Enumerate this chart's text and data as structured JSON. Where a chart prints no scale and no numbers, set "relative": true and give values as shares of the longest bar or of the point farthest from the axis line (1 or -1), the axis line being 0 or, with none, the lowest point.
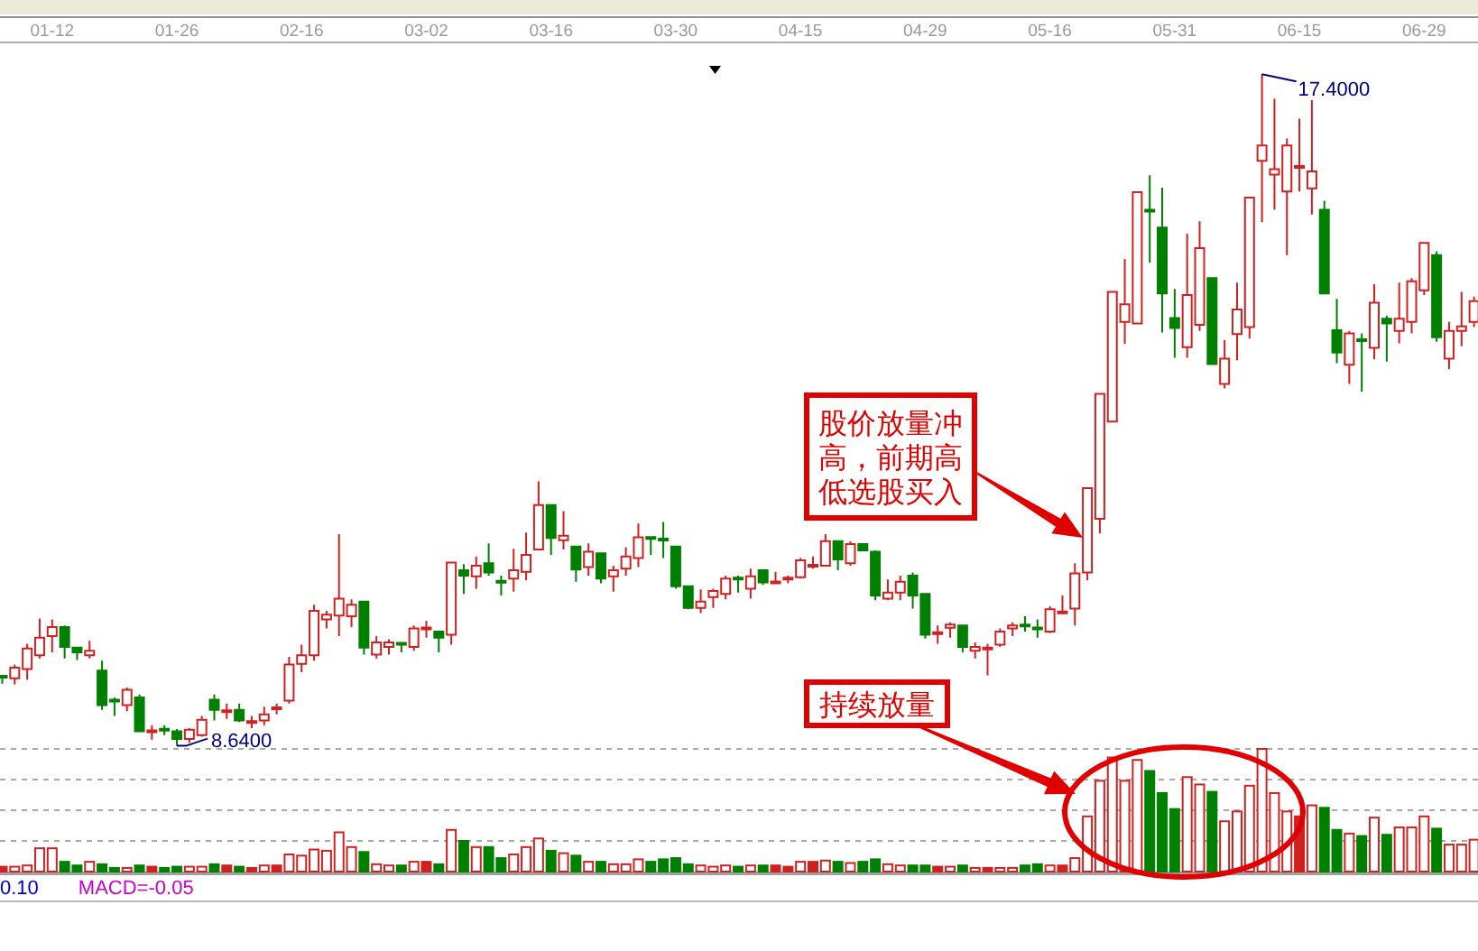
{
  "chart_data": [
    {
      "type": "candlestick",
      "tick_labels": "x",
      "categories": [
        null,
        null,
        null,
        null,
        "01-12",
        null,
        null,
        null,
        null,
        null,
        null,
        null,
        null,
        null,
        "01-26",
        null,
        null,
        null,
        null,
        null,
        null,
        null,
        null,
        null,
        "02-16",
        null,
        null,
        null,
        null,
        null,
        null,
        null,
        null,
        null,
        "03-02",
        null,
        null,
        null,
        null,
        null,
        null,
        null,
        null,
        null,
        "03-16",
        null,
        null,
        null,
        null,
        null,
        null,
        null,
        null,
        null,
        "03-30",
        null,
        null,
        null,
        null,
        null,
        null,
        null,
        null,
        null,
        "04-15",
        null,
        null,
        null,
        null,
        null,
        null,
        null,
        null,
        null,
        "04-29",
        null,
        null,
        null,
        null,
        null,
        null,
        null,
        null,
        null,
        "05-16",
        null,
        null,
        null,
        null,
        null,
        null,
        null,
        null,
        null,
        "05-31",
        null,
        null,
        null,
        null,
        null,
        null,
        null,
        null,
        null,
        "06-15",
        null,
        null,
        null,
        null,
        null,
        null,
        null,
        null,
        null,
        "06-29",
        null,
        null,
        null,
        null
      ],
      "ohlc": [
        [
          9.54,
          9.56,
          9.45,
          9.54
        ],
        [
          9.52,
          9.7,
          9.44,
          9.66
        ],
        [
          9.64,
          9.97,
          9.5,
          9.91
        ],
        [
          9.82,
          10.3,
          9.78,
          10.05
        ],
        [
          10.07,
          10.29,
          9.86,
          10.19
        ],
        [
          10.19,
          10.21,
          9.78,
          9.93
        ],
        [
          9.92,
          9.92,
          9.76,
          9.86
        ],
        [
          9.82,
          10.01,
          9.78,
          9.88
        ],
        [
          9.62,
          9.75,
          9.11,
          9.17
        ],
        [
          9.23,
          9.27,
          9.03,
          9.23
        ],
        [
          9.17,
          9.4,
          9.09,
          9.37
        ],
        [
          9.27,
          9.31,
          8.83,
          8.83
        ],
        [
          8.83,
          8.91,
          8.72,
          8.83
        ],
        [
          8.85,
          8.91,
          8.78,
          8.85
        ],
        [
          8.83,
          8.86,
          8.64,
          8.73
        ],
        [
          8.73,
          8.87,
          8.68,
          8.85
        ],
        [
          8.78,
          9.03,
          8.76,
          8.98
        ],
        [
          9.24,
          9.31,
          8.97,
          9.11
        ],
        [
          9.09,
          9.19,
          8.99,
          9.09
        ],
        [
          9.11,
          9.19,
          8.95,
          8.97
        ],
        [
          8.95,
          9.03,
          8.87,
          8.95
        ],
        [
          8.97,
          9.15,
          8.91,
          9.05
        ],
        [
          9.13,
          9.19,
          9.05,
          9.13
        ],
        [
          9.23,
          9.8,
          9.19,
          9.7
        ],
        [
          9.71,
          9.96,
          9.6,
          9.82
        ],
        [
          9.82,
          10.48,
          9.75,
          10.4
        ],
        [
          10.29,
          10.4,
          10.17,
          10.35
        ],
        [
          10.34,
          11.4,
          10.07,
          10.56
        ],
        [
          10.33,
          10.55,
          10.19,
          10.48
        ],
        [
          10.52,
          10.52,
          9.83,
          9.92
        ],
        [
          9.83,
          10.07,
          9.78,
          9.99
        ],
        [
          9.93,
          10.03,
          9.83,
          9.99
        ],
        [
          9.97,
          9.98,
          9.86,
          9.97
        ],
        [
          9.93,
          10.21,
          9.88,
          10.17
        ],
        [
          10.17,
          10.27,
          10.05,
          10.17
        ],
        [
          10.13,
          10.13,
          9.86,
          10.05
        ],
        [
          10.09,
          11.03,
          9.96,
          11.03
        ],
        [
          10.93,
          11.01,
          10.62,
          10.86
        ],
        [
          10.85,
          11.11,
          10.69,
          10.99
        ],
        [
          11.02,
          11.28,
          10.86,
          10.9
        ],
        [
          10.78,
          10.86,
          10.6,
          10.78
        ],
        [
          10.82,
          11.21,
          10.65,
          10.93
        ],
        [
          10.91,
          11.42,
          10.8,
          11.13
        ],
        [
          11.2,
          12.09,
          11.2,
          11.78
        ],
        [
          11.78,
          11.78,
          11.13,
          11.35
        ],
        [
          11.32,
          11.7,
          11.2,
          11.38
        ],
        [
          11.24,
          11.24,
          10.78,
          10.94
        ],
        [
          10.97,
          11.28,
          10.86,
          11.17
        ],
        [
          11.15,
          11.15,
          10.76,
          10.82
        ],
        [
          10.85,
          10.99,
          10.65,
          10.93
        ],
        [
          10.95,
          11.23,
          10.86,
          11.11
        ],
        [
          11.09,
          11.54,
          10.97,
          11.36
        ],
        [
          11.35,
          11.36,
          11.13,
          11.35
        ],
        [
          11.33,
          11.56,
          11.09,
          11.33
        ],
        [
          11.24,
          11.24,
          10.69,
          10.72
        ],
        [
          10.72,
          10.72,
          10.42,
          10.44
        ],
        [
          10.44,
          10.68,
          10.37,
          10.52
        ],
        [
          10.58,
          10.69,
          10.44,
          10.66
        ],
        [
          10.62,
          10.86,
          10.55,
          10.82
        ],
        [
          10.82,
          10.86,
          10.64,
          10.82
        ],
        [
          10.69,
          10.95,
          10.56,
          10.85
        ],
        [
          10.93,
          10.93,
          10.74,
          10.77
        ],
        [
          10.77,
          10.91,
          10.76,
          10.77
        ],
        [
          10.82,
          10.86,
          10.76,
          10.82
        ],
        [
          10.84,
          11.09,
          10.82,
          11.06
        ],
        [
          10.99,
          11.11,
          10.95,
          10.99
        ],
        [
          10.99,
          11.4,
          10.98,
          11.31
        ],
        [
          11.31,
          11.31,
          10.93,
          11.07
        ],
        [
          11.02,
          11.31,
          10.99,
          11.27
        ],
        [
          11.27,
          11.27,
          11.19,
          11.19
        ],
        [
          11.17,
          11.19,
          10.54,
          10.6
        ],
        [
          10.56,
          10.81,
          10.54,
          10.64
        ],
        [
          10.64,
          10.86,
          10.54,
          10.78
        ],
        [
          10.86,
          10.9,
          10.43,
          10.6
        ],
        [
          10.62,
          10.62,
          10.04,
          10.09
        ],
        [
          10.11,
          10.21,
          9.97,
          10.11
        ],
        [
          10.18,
          10.25,
          10.05,
          10.22
        ],
        [
          10.21,
          10.21,
          9.86,
          9.93
        ],
        [
          9.88,
          9.99,
          9.78,
          9.93
        ],
        [
          9.91,
          9.97,
          9.56,
          9.91
        ],
        [
          9.96,
          10.17,
          9.93,
          10.13
        ],
        [
          10.17,
          10.25,
          10.07,
          10.21
        ],
        [
          10.21,
          10.33,
          10.13,
          10.21
        ],
        [
          10.17,
          10.29,
          10.05,
          10.17
        ],
        [
          10.13,
          10.46,
          10.11,
          10.42
        ],
        [
          10.38,
          10.6,
          10.37,
          10.38
        ],
        [
          10.43,
          11.02,
          10.21,
          10.89
        ],
        [
          10.9,
          12.0,
          10.8,
          12.0
        ],
        [
          11.6,
          13.23,
          11.41,
          13.23
        ],
        [
          12.87,
          14.56,
          12.87,
          14.56
        ],
        [
          14.17,
          14.99,
          13.88,
          14.4
        ],
        [
          14.15,
          15.86,
          14.15,
          15.86
        ],
        [
          15.62,
          16.08,
          14.94,
          15.62
        ],
        [
          15.4,
          15.92,
          14.03,
          14.54
        ],
        [
          14.22,
          14.6,
          13.7,
          14.09
        ],
        [
          13.84,
          15.32,
          13.7,
          14.52
        ],
        [
          14.13,
          15.48,
          14.05,
          15.13
        ],
        [
          14.74,
          14.74,
          13.62,
          13.62
        ],
        [
          13.36,
          13.93,
          13.3,
          13.69
        ],
        [
          14.01,
          14.68,
          13.67,
          14.33
        ],
        [
          14.1,
          15.79,
          13.95,
          15.79
        ],
        [
          16.27,
          17.4,
          15.47,
          16.47
        ],
        [
          16.09,
          17.08,
          15.63,
          16.16
        ],
        [
          15.87,
          16.56,
          15.04,
          16.47
        ],
        [
          16.19,
          16.82,
          15.87,
          16.19
        ],
        [
          15.91,
          17.06,
          15.57,
          16.13
        ],
        [
          15.63,
          15.75,
          14.54,
          14.54
        ],
        [
          14.06,
          14.47,
          13.63,
          13.77
        ],
        [
          13.61,
          14.05,
          13.36,
          14.02
        ],
        [
          13.93,
          14.02,
          13.26,
          13.93
        ],
        [
          13.83,
          14.66,
          13.68,
          14.42
        ],
        [
          14.21,
          14.25,
          13.65,
          14.15
        ],
        [
          14.05,
          14.68,
          13.89,
          14.21
        ],
        [
          14.17,
          14.74,
          14.02,
          14.7
        ],
        [
          14.58,
          15.21,
          14.52,
          15.2
        ],
        [
          15.04,
          15.09,
          13.91,
          13.97
        ],
        [
          13.69,
          14.17,
          13.55,
          14.05
        ],
        [
          14.05,
          14.56,
          13.85,
          14.11
        ],
        [
          14.17,
          14.5,
          14.1,
          14.44
        ]
      ],
      "colors": [
        "#008000",
        "#d02020",
        "#d02020",
        "#d02020",
        "#d02020",
        "#008000",
        "#008000",
        "#d02020",
        "#008000",
        "#008000",
        "#d02020",
        "#008000",
        "#d02020",
        "#008000",
        "#008000",
        "#d02020",
        "#d02020",
        "#008000",
        "#d02020",
        "#008000",
        "#d02020",
        "#d02020",
        "#d02020",
        "#d02020",
        "#d02020",
        "#d02020",
        "#d02020",
        "#d02020",
        "#d02020",
        "#008000",
        "#d02020",
        "#d02020",
        "#008000",
        "#d02020",
        "#d02020",
        "#008000",
        "#d02020",
        "#008000",
        "#d02020",
        "#008000",
        "#008000",
        "#d02020",
        "#d02020",
        "#d02020",
        "#008000",
        "#d02020",
        "#008000",
        "#d02020",
        "#008000",
        "#d02020",
        "#d02020",
        "#d02020",
        "#008000",
        "#008000",
        "#008000",
        "#008000",
        "#d02020",
        "#d02020",
        "#d02020",
        "#008000",
        "#d02020",
        "#008000",
        "#d02020",
        "#d02020",
        "#d02020",
        "#d02020",
        "#d02020",
        "#008000",
        "#d02020",
        "#008000",
        "#008000",
        "#d02020",
        "#d02020",
        "#008000",
        "#008000",
        "#d02020",
        "#d02020",
        "#008000",
        "#d02020",
        "#d02020",
        "#d02020",
        "#d02020",
        "#008000",
        "#008000",
        "#d02020",
        "#d02020",
        "#d02020",
        "#d02020",
        "#d02020",
        "#d02020",
        "#d02020",
        "#d02020",
        "#008000",
        "#008000",
        "#008000",
        "#d02020",
        "#d02020",
        "#008000",
        "#d02020",
        "#d02020",
        "#d02020",
        "#d02020",
        "#d02020",
        "#d02020",
        "#d02020",
        "#d02020",
        "#008000",
        "#008000",
        "#d02020",
        "#008000",
        "#d02020",
        "#008000",
        "#d02020",
        "#d02020",
        "#d02020",
        "#008000",
        "#d02020",
        "#d02020",
        "#d02020"
      ],
      "annotations": [
        "17.4000",
        "8.6400",
        "股价放量冲高，前期高低选股买入"
      ]
    },
    {
      "type": "bar",
      "relative": true,
      "grid": true,
      "tick_labels": false,
      "categories": [
        null,
        null,
        null,
        null,
        null,
        null,
        null,
        null,
        null,
        null,
        null,
        null,
        null,
        null,
        null,
        null,
        null,
        null,
        null,
        null,
        null,
        null,
        null,
        null,
        null,
        null,
        null,
        null,
        null,
        null,
        null,
        null,
        null,
        null,
        null,
        null,
        null,
        null,
        null,
        null,
        null,
        null,
        null,
        null,
        null,
        null,
        null,
        null,
        null,
        null,
        null,
        null,
        null,
        null,
        null,
        null,
        null,
        null,
        null,
        null,
        null,
        null,
        null,
        null,
        null,
        null,
        null,
        null,
        null,
        null,
        null,
        null,
        null,
        null,
        null,
        null,
        null,
        null,
        null,
        null,
        null,
        null,
        null,
        null,
        null,
        null,
        null,
        null,
        null,
        null,
        null,
        null,
        null,
        null,
        null,
        null,
        null,
        null,
        null,
        null,
        null,
        null,
        null,
        null,
        null,
        null,
        null,
        null,
        null,
        null,
        null,
        null,
        null,
        null,
        null,
        null,
        null,
        null,
        null
      ],
      "values": [
        0.04,
        0.04,
        0.05,
        0.19,
        0.19,
        0.08,
        0.05,
        0.08,
        0.06,
        0.03,
        0.03,
        0.05,
        0.04,
        0.03,
        0.04,
        0.04,
        0.04,
        0.06,
        0.05,
        0.04,
        0.03,
        0.05,
        0.05,
        0.14,
        0.13,
        0.18,
        0.17,
        0.32,
        0.2,
        0.16,
        0.06,
        0.05,
        0.05,
        0.08,
        0.08,
        0.06,
        0.34,
        0.25,
        0.2,
        0.2,
        0.11,
        0.14,
        0.2,
        0.27,
        0.17,
        0.15,
        0.13,
        0.08,
        0.08,
        0.06,
        0.06,
        0.1,
        0.08,
        0.1,
        0.11,
        0.06,
        0.05,
        0.04,
        0.05,
        0.04,
        0.05,
        0.05,
        0.05,
        0.04,
        0.08,
        0.08,
        0.09,
        0.08,
        0.07,
        0.08,
        0.1,
        0.06,
        0.05,
        0.05,
        0.05,
        0.04,
        0.04,
        0.05,
        0.03,
        0.03,
        0.03,
        0.03,
        0.05,
        0.06,
        0.05,
        0.05,
        0.11,
        0.45,
        0.74,
        0.93,
        0.74,
        0.91,
        0.82,
        0.64,
        0.51,
        0.77,
        0.71,
        0.65,
        0.41,
        0.49,
        0.7,
        1,
        0.64,
        0.49,
        0.45,
        0.54,
        0.52,
        0.34,
        0.31,
        0.29,
        0.44,
        0.3,
        0.36,
        0.36,
        0.45,
        0.35,
        0.22,
        0.22,
        0.26
      ],
      "colors": [
        "#d02020",
        "#d02020",
        "#d02020",
        "#d02020",
        "#d02020",
        "#008000",
        "#008000",
        "#d02020",
        "#008000",
        "#008000",
        "#d02020",
        "#008000",
        "#d02020",
        "#008000",
        "#008000",
        "#d02020",
        "#d02020",
        "#008000",
        "#d02020",
        "#008000",
        "#d02020",
        "#d02020",
        "#d02020",
        "#d02020",
        "#d02020",
        "#d02020",
        "#d02020",
        "#d02020",
        "#d02020",
        "#008000",
        "#d02020",
        "#d02020",
        "#008000",
        "#d02020",
        "#d02020",
        "#008000",
        "#d02020",
        "#008000",
        "#d02020",
        "#008000",
        "#008000",
        "#d02020",
        "#d02020",
        "#d02020",
        "#008000",
        "#d02020",
        "#008000",
        "#d02020",
        "#008000",
        "#d02020",
        "#d02020",
        "#d02020",
        "#008000",
        "#008000",
        "#008000",
        "#008000",
        "#d02020",
        "#d02020",
        "#d02020",
        "#008000",
        "#d02020",
        "#008000",
        "#d02020",
        "#d02020",
        "#d02020",
        "#d02020",
        "#d02020",
        "#008000",
        "#d02020",
        "#008000",
        "#008000",
        "#d02020",
        "#d02020",
        "#008000",
        "#008000",
        "#d02020",
        "#d02020",
        "#008000",
        "#d02020",
        "#d02020",
        "#d02020",
        "#d02020",
        "#008000",
        "#008000",
        "#d02020",
        "#d02020",
        "#d02020",
        "#d02020",
        "#d02020",
        "#d02020",
        "#d02020",
        "#d02020",
        "#008000",
        "#008000",
        "#008000",
        "#d02020",
        "#d02020",
        "#008000",
        "#d02020",
        "#d02020",
        "#d02020",
        "#d02020",
        "#d02020",
        "#d02020",
        "#d02020",
        "#d02020",
        "#008000",
        "#008000",
        "#d02020",
        "#008000",
        "#d02020",
        "#008000",
        "#d02020",
        "#d02020",
        "#d02020",
        "#008000",
        "#d02020",
        "#d02020",
        "#d02020"
      ],
      "annotations": [
        "持续放量"
      ]
    },
    {
      "type": "other",
      "annotations": [
        "0.10",
        "MACD=-0.05"
      ]
    }
  ]
}
